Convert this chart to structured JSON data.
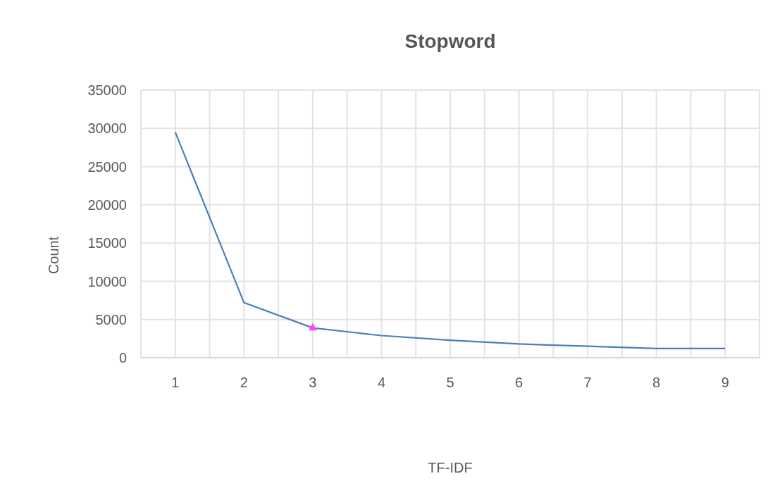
{
  "chart_data": {
    "type": "line",
    "title": "Stopword",
    "xlabel": "TF-IDF",
    "ylabel": "Count",
    "categories": [
      "1",
      "2",
      "3",
      "4",
      "5",
      "6",
      "7",
      "8",
      "9"
    ],
    "series": [
      {
        "color": "#4a7ebb",
        "values": [
          29500,
          7200,
          3900,
          2900,
          2300,
          1800,
          1500,
          1200,
          1200
        ],
        "marker": "none"
      },
      {
        "type": "scatter",
        "color": "#ff44ff",
        "x": [
          "3"
        ],
        "values": [
          3900
        ],
        "marker": "triangle"
      }
    ],
    "ylim": [
      0,
      35000
    ],
    "yticks": [
      0,
      5000,
      10000,
      15000,
      20000,
      25000,
      30000,
      35000
    ],
    "grid": true
  }
}
